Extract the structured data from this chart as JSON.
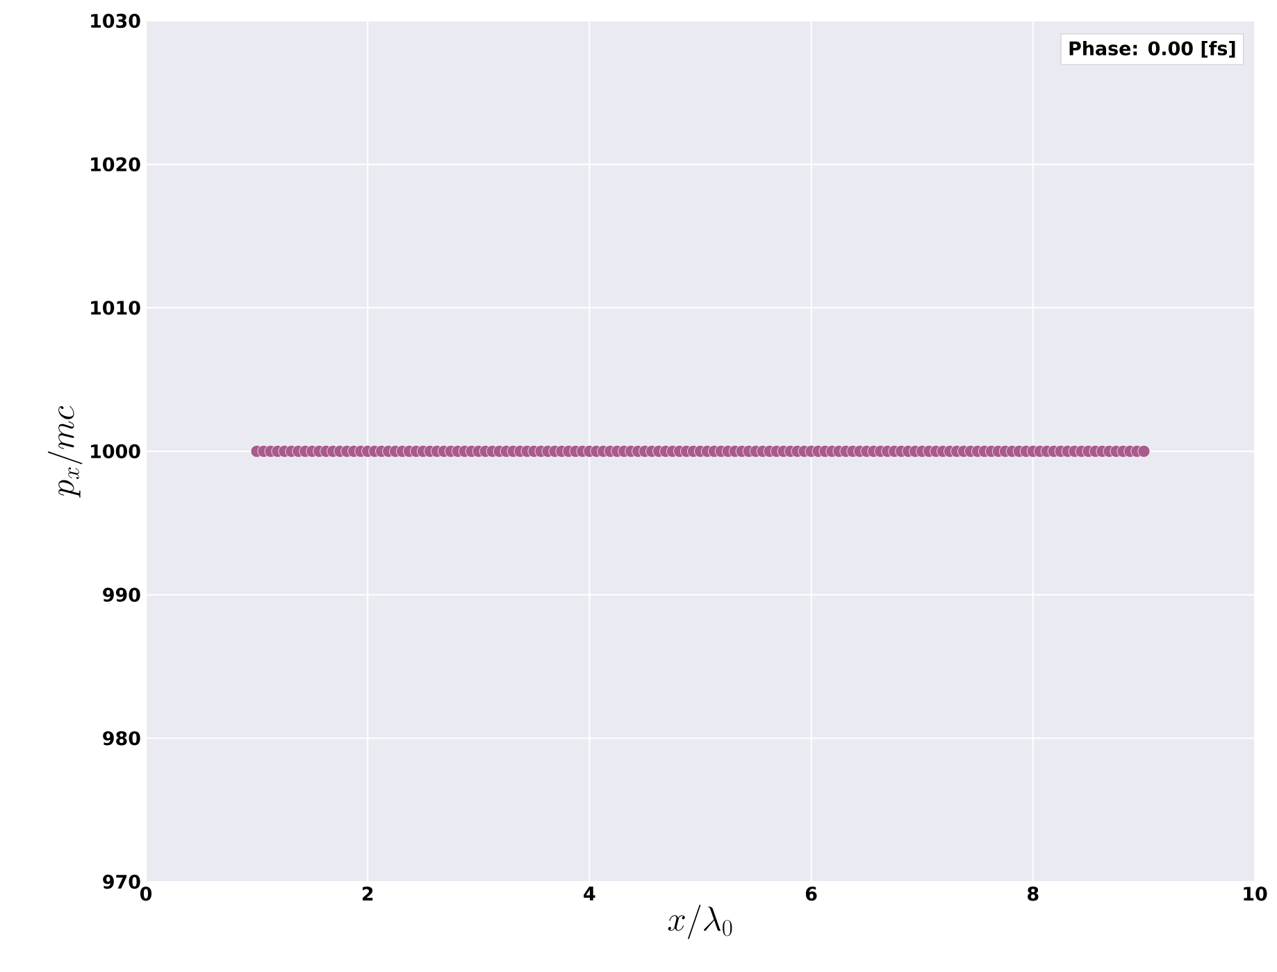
{
  "chart_data": {
    "type": "scatter",
    "xlabel": "x/\\lambda_0",
    "ylabel": "p_x/mc",
    "annotations": [
      "Phase:  0.00 [fs]"
    ],
    "x": [
      1,
      1.0625,
      1.125,
      1.1875,
      1.25,
      1.3125,
      1.375,
      1.4375,
      1.5,
      1.5625,
      1.625,
      1.6875,
      1.75,
      1.8125,
      1.875,
      1.9375,
      2,
      2.0625,
      2.125,
      2.1875,
      2.25,
      2.3125,
      2.375,
      2.4375,
      2.5,
      2.5625,
      2.625,
      2.6875,
      2.75,
      2.8125,
      2.875,
      2.9375,
      3,
      3.0625,
      3.125,
      3.1875,
      3.25,
      3.3125,
      3.375,
      3.4375,
      3.5,
      3.5625,
      3.625,
      3.6875,
      3.75,
      3.8125,
      3.875,
      3.9375,
      4,
      4.0625,
      4.125,
      4.1875,
      4.25,
      4.3125,
      4.375,
      4.4375,
      4.5,
      4.5625,
      4.625,
      4.6875,
      4.75,
      4.8125,
      4.875,
      4.9375,
      5,
      5.0625,
      5.125,
      5.1875,
      5.25,
      5.3125,
      5.375,
      5.4375,
      5.5,
      5.5625,
      5.625,
      5.6875,
      5.75,
      5.8125,
      5.875,
      5.9375,
      6,
      6.0625,
      6.125,
      6.1875,
      6.25,
      6.3125,
      6.375,
      6.4375,
      6.5,
      6.5625,
      6.625,
      6.6875,
      6.75,
      6.8125,
      6.875,
      6.9375,
      7,
      7.0625,
      7.125,
      7.1875,
      7.25,
      7.3125,
      7.375,
      7.4375,
      7.5,
      7.5625,
      7.625,
      7.6875,
      7.75,
      7.8125,
      7.875,
      7.9375,
      8,
      8.0625,
      8.125,
      8.1875,
      8.25,
      8.3125,
      8.375,
      8.4375,
      8.5,
      8.5625,
      8.625,
      8.6875,
      8.75,
      8.8125,
      8.875,
      8.9375,
      9
    ],
    "series": [
      {
        "color": "#a85a8c",
        "values": [
          1000,
          1000,
          1000,
          1000,
          1000,
          1000,
          1000,
          1000,
          1000,
          1000,
          1000,
          1000,
          1000,
          1000,
          1000,
          1000,
          1000,
          1000,
          1000,
          1000,
          1000,
          1000,
          1000,
          1000,
          1000,
          1000,
          1000,
          1000,
          1000,
          1000,
          1000,
          1000,
          1000,
          1000,
          1000,
          1000,
          1000,
          1000,
          1000,
          1000,
          1000,
          1000,
          1000,
          1000,
          1000,
          1000,
          1000,
          1000,
          1000,
          1000,
          1000,
          1000,
          1000,
          1000,
          1000,
          1000,
          1000,
          1000,
          1000,
          1000,
          1000,
          1000,
          1000,
          1000,
          1000,
          1000,
          1000,
          1000,
          1000,
          1000,
          1000,
          1000,
          1000,
          1000,
          1000,
          1000,
          1000,
          1000,
          1000,
          1000,
          1000,
          1000,
          1000,
          1000,
          1000,
          1000,
          1000,
          1000,
          1000,
          1000,
          1000,
          1000,
          1000,
          1000,
          1000,
          1000,
          1000,
          1000,
          1000,
          1000,
          1000,
          1000,
          1000,
          1000,
          1000,
          1000,
          1000,
          1000,
          1000,
          1000,
          1000,
          1000,
          1000,
          1000,
          1000,
          1000,
          1000,
          1000,
          1000,
          1000,
          1000,
          1000,
          1000,
          1000,
          1000,
          1000,
          1000,
          1000,
          1000
        ]
      }
    ],
    "xlim": [
      0,
      10
    ],
    "xticks": [
      0,
      2,
      4,
      6,
      8,
      10
    ],
    "ylim": [
      970,
      1030
    ],
    "yticks": [
      970,
      980,
      990,
      1000,
      1010,
      1020,
      1030
    ],
    "grid": true
  }
}
